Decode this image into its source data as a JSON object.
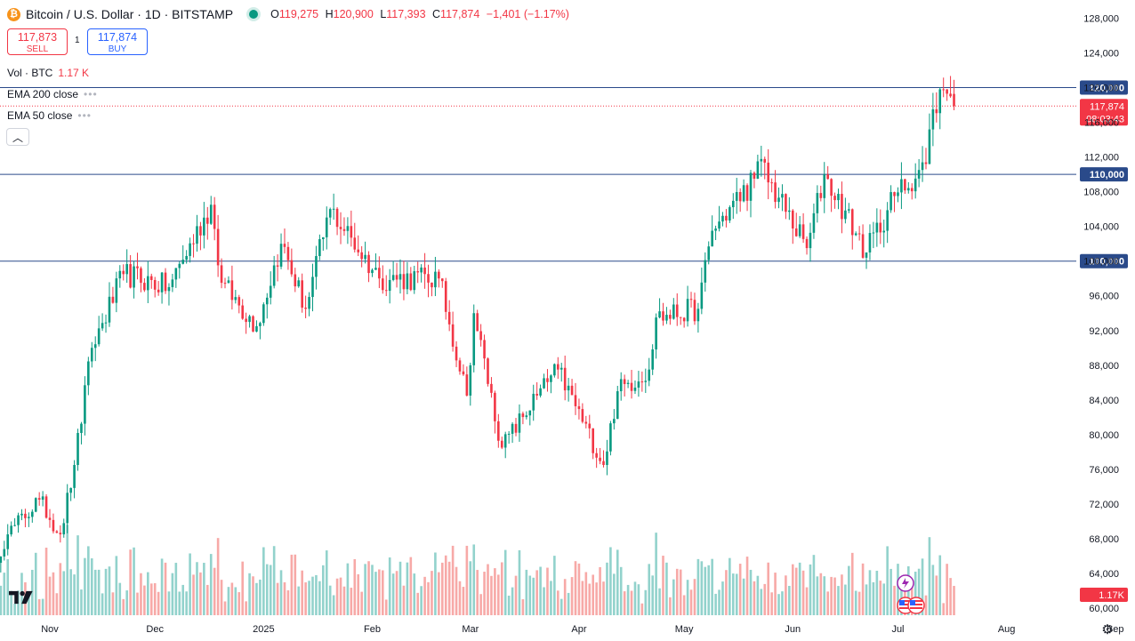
{
  "header": {
    "symbol": "Bitcoin / U.S. Dollar · 1D · BITSTAMP",
    "logo_letter": "₿",
    "open_label": "O",
    "open": "119,275",
    "high_label": "H",
    "high": "120,900",
    "low_label": "L",
    "low": "117,393",
    "close_label": "C",
    "close": "117,874",
    "change": "−1,401 (−1.17%)"
  },
  "trade": {
    "sell_price": "117,873",
    "sell_label": "SELL",
    "spread": "1",
    "buy_price": "117,874",
    "buy_label": "BUY"
  },
  "legend": {
    "volume_label": "Vol · BTC",
    "volume_value": "1.17 K",
    "ema200_label": "EMA 200 close",
    "ema50_label": "EMA 50 close",
    "collapse_icon": "chevron-up-icon"
  },
  "colors": {
    "up": "#089981",
    "down": "#f23645",
    "up_volume": "#92d2cc",
    "down_volume": "#f7a9a7",
    "level_line": "#2a4a8a",
    "last_price": "#f23645"
  },
  "chart_data": {
    "type": "candlestick",
    "title": "Bitcoin / U.S. Dollar · 1D · BITSTAMP",
    "yrange": [
      59000,
      130000
    ],
    "y_ticks": [
      "128,000",
      "124,000",
      "120,000",
      "116,000",
      "112,000",
      "108,000",
      "104,000",
      "100,000",
      "96,000",
      "92,000",
      "88,000",
      "84,000",
      "80,000",
      "76,000",
      "72,000",
      "68,000",
      "64,000",
      "60,000"
    ],
    "x_ticks": [
      {
        "label": "Nov",
        "date": "2024-11-01"
      },
      {
        "label": "Dec",
        "date": "2024-12-01"
      },
      {
        "label": "2025",
        "date": "2025-01-01"
      },
      {
        "label": "Feb",
        "date": "2025-02-01"
      },
      {
        "label": "Mar",
        "date": "2025-03-01"
      },
      {
        "label": "Apr",
        "date": "2025-04-01"
      },
      {
        "label": "May",
        "date": "2025-05-01"
      },
      {
        "label": "Jun",
        "date": "2025-06-01"
      },
      {
        "label": "Jul",
        "date": "2025-07-01"
      },
      {
        "label": "Aug",
        "date": "2025-08-01"
      },
      {
        "label": "Sep",
        "date": "2025-09-01"
      }
    ],
    "horizontal_levels": [
      {
        "value": 120000,
        "label": "120,000"
      },
      {
        "value": 110000,
        "label": "110,000"
      },
      {
        "value": 100000,
        "label": "100,000"
      }
    ],
    "last_price": {
      "value": 117874,
      "label": "117,874",
      "countdown": "08:03:43"
    },
    "volume_label": "1.17K",
    "series_anchor_closes": [
      {
        "date": "2024-10-13",
        "close": 63000
      },
      {
        "date": "2024-10-20",
        "close": 68500
      },
      {
        "date": "2024-10-29",
        "close": 72500
      },
      {
        "date": "2024-11-04",
        "close": 68500
      },
      {
        "date": "2024-11-08",
        "close": 76500
      },
      {
        "date": "2024-11-13",
        "close": 90000
      },
      {
        "date": "2024-11-22",
        "close": 98500
      },
      {
        "date": "2024-12-05",
        "close": 97000
      },
      {
        "date": "2024-12-17",
        "close": 106500
      },
      {
        "date": "2024-12-20",
        "close": 97500
      },
      {
        "date": "2024-12-30",
        "close": 92500
      },
      {
        "date": "2025-01-06",
        "close": 102000
      },
      {
        "date": "2025-01-13",
        "close": 94500
      },
      {
        "date": "2025-01-20",
        "close": 106000
      },
      {
        "date": "2025-02-03",
        "close": 98000
      },
      {
        "date": "2025-02-20",
        "close": 98000
      },
      {
        "date": "2025-02-28",
        "close": 84500
      },
      {
        "date": "2025-03-02",
        "close": 94000
      },
      {
        "date": "2025-03-10",
        "close": 78500
      },
      {
        "date": "2025-03-20",
        "close": 84500
      },
      {
        "date": "2025-03-26",
        "close": 87500
      },
      {
        "date": "2025-04-08",
        "close": 76500
      },
      {
        "date": "2025-04-12",
        "close": 85000
      },
      {
        "date": "2025-04-21",
        "close": 87500
      },
      {
        "date": "2025-04-23",
        "close": 93500
      },
      {
        "date": "2025-05-05",
        "close": 94500
      },
      {
        "date": "2025-05-09",
        "close": 103500
      },
      {
        "date": "2025-05-21",
        "close": 109500
      },
      {
        "date": "2025-05-22",
        "close": 111500
      },
      {
        "date": "2025-06-05",
        "close": 101500
      },
      {
        "date": "2025-06-10",
        "close": 110000
      },
      {
        "date": "2025-06-22",
        "close": 101000
      },
      {
        "date": "2025-06-30",
        "close": 107500
      },
      {
        "date": "2025-07-09",
        "close": 111200
      },
      {
        "date": "2025-07-11",
        "close": 117500
      },
      {
        "date": "2025-07-14",
        "close": 119800
      },
      {
        "date": "2025-07-16",
        "close": 119000
      },
      {
        "date": "2025-07-17",
        "close": 117874
      }
    ]
  }
}
